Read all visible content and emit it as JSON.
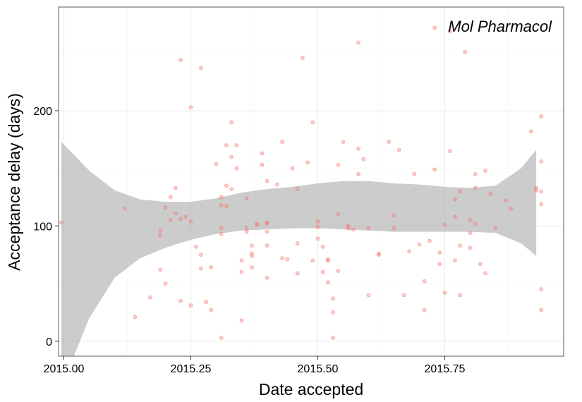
{
  "chart_data": {
    "type": "scatter",
    "xlabel": "Date accepted",
    "ylabel": "Acceptance delay (days)",
    "annotation": "Mol Pharmacol",
    "xlim": [
      1.9896,
      2.9841
    ],
    "ylim": [
      -13,
      290
    ],
    "x_ticks": [
      {
        "value": 2015.0,
        "label": "2015.00"
      },
      {
        "value": 2015.25,
        "label": "2015.25"
      },
      {
        "value": 2015.5,
        "label": "2015.50"
      },
      {
        "value": 2015.75,
        "label": "2015.75"
      }
    ],
    "y_ticks": [
      {
        "value": 0,
        "label": "0"
      },
      {
        "value": 100,
        "label": "100"
      },
      {
        "value": 200,
        "label": "200"
      }
    ],
    "grid": true,
    "smooth_band": {
      "color": "#999999",
      "x": [
        2014.995,
        2015.05,
        2015.1,
        2015.15,
        2015.2,
        2015.25,
        2015.3,
        2015.35,
        2015.4,
        2015.45,
        2015.5,
        2015.55,
        2015.6,
        2015.65,
        2015.7,
        2015.75,
        2015.8,
        2015.85,
        2015.9,
        2015.93
      ],
      "upper": [
        173,
        148,
        131,
        123,
        121,
        121,
        124,
        129,
        132,
        134,
        137,
        139,
        139,
        137,
        136,
        134,
        133,
        135,
        150,
        166
      ],
      "lower": [
        -40,
        20,
        55,
        72,
        81,
        88,
        93,
        96,
        97,
        98,
        98,
        97,
        96,
        95,
        95,
        95,
        95,
        94,
        85,
        74
      ]
    },
    "series": [
      {
        "color": "#f8766d",
        "points": [
          [
            2014.995,
            103
          ],
          [
            2015.12,
            115
          ],
          [
            2015.14,
            21
          ],
          [
            2015.17,
            38
          ],
          [
            2015.19,
            62
          ],
          [
            2015.19,
            96
          ],
          [
            2015.19,
            92
          ],
          [
            2015.2,
            50
          ],
          [
            2015.2,
            116
          ],
          [
            2015.21,
            125
          ],
          [
            2015.21,
            105
          ],
          [
            2015.22,
            111
          ],
          [
            2015.23,
            106
          ],
          [
            2015.22,
            133
          ],
          [
            2015.23,
            35
          ],
          [
            2015.23,
            244
          ],
          [
            2015.24,
            108
          ],
          [
            2015.25,
            104
          ],
          [
            2015.25,
            31
          ],
          [
            2015.25,
            203
          ],
          [
            2015.26,
            82
          ],
          [
            2015.27,
            63
          ],
          [
            2015.27,
            75
          ],
          [
            2015.27,
            237
          ],
          [
            2015.28,
            34
          ],
          [
            2015.29,
            27
          ],
          [
            2015.29,
            64
          ],
          [
            2015.3,
            154
          ],
          [
            2015.31,
            125
          ],
          [
            2015.31,
            118
          ],
          [
            2015.31,
            98
          ],
          [
            2015.31,
            93
          ],
          [
            2015.31,
            3
          ],
          [
            2015.32,
            135
          ],
          [
            2015.32,
            117
          ],
          [
            2015.32,
            170
          ],
          [
            2015.33,
            160
          ],
          [
            2015.33,
            190
          ],
          [
            2015.33,
            132
          ],
          [
            2015.34,
            150
          ],
          [
            2015.34,
            170
          ],
          [
            2015.35,
            18
          ],
          [
            2015.35,
            60
          ],
          [
            2015.35,
            70
          ],
          [
            2015.36,
            95
          ],
          [
            2015.36,
            98
          ],
          [
            2015.36,
            124
          ],
          [
            2015.37,
            64
          ],
          [
            2015.37,
            74
          ],
          [
            2015.37,
            76
          ],
          [
            2015.37,
            83
          ],
          [
            2015.38,
            102
          ],
          [
            2015.38,
            101
          ],
          [
            2015.39,
            163
          ],
          [
            2015.39,
            153
          ],
          [
            2015.4,
            139
          ],
          [
            2015.4,
            103
          ],
          [
            2015.4,
            95
          ],
          [
            2015.4,
            102
          ],
          [
            2015.4,
            83
          ],
          [
            2015.4,
            55
          ],
          [
            2015.42,
            136
          ],
          [
            2015.43,
            173
          ],
          [
            2015.43,
            72
          ],
          [
            2015.44,
            71
          ],
          [
            2015.45,
            150
          ],
          [
            2015.46,
            132
          ],
          [
            2015.46,
            85
          ],
          [
            2015.46,
            59
          ],
          [
            2015.47,
            246
          ],
          [
            2015.48,
            155
          ],
          [
            2015.49,
            190
          ],
          [
            2015.49,
            70
          ],
          [
            2015.5,
            104
          ],
          [
            2015.5,
            89
          ],
          [
            2015.5,
            99
          ],
          [
            2015.51,
            60
          ],
          [
            2015.51,
            82
          ],
          [
            2015.52,
            70
          ],
          [
            2015.52,
            71
          ],
          [
            2015.52,
            51
          ],
          [
            2015.53,
            37
          ],
          [
            2015.53,
            25
          ],
          [
            2015.53,
            3
          ],
          [
            2015.54,
            110
          ],
          [
            2015.54,
            61
          ],
          [
            2015.54,
            153
          ],
          [
            2015.55,
            173
          ],
          [
            2015.56,
            100
          ],
          [
            2015.56,
            98
          ],
          [
            2015.57,
            97
          ],
          [
            2015.58,
            145
          ],
          [
            2015.58,
            259
          ],
          [
            2015.58,
            167
          ],
          [
            2015.59,
            158
          ],
          [
            2015.6,
            40
          ],
          [
            2015.6,
            98
          ],
          [
            2015.62,
            76
          ],
          [
            2015.62,
            75
          ],
          [
            2015.64,
            173
          ],
          [
            2015.65,
            98
          ],
          [
            2015.65,
            109
          ],
          [
            2015.66,
            166
          ],
          [
            2015.67,
            40
          ],
          [
            2015.68,
            78
          ],
          [
            2015.69,
            145
          ],
          [
            2015.7,
            84
          ],
          [
            2015.71,
            27
          ],
          [
            2015.71,
            52
          ],
          [
            2015.72,
            87
          ],
          [
            2015.73,
            149
          ],
          [
            2015.73,
            272
          ],
          [
            2015.74,
            67
          ],
          [
            2015.74,
            77
          ],
          [
            2015.75,
            42
          ],
          [
            2015.75,
            101
          ],
          [
            2015.76,
            269
          ],
          [
            2015.76,
            165
          ],
          [
            2015.77,
            70
          ],
          [
            2015.77,
            108
          ],
          [
            2015.77,
            123
          ],
          [
            2015.78,
            130
          ],
          [
            2015.78,
            40
          ],
          [
            2015.78,
            83
          ],
          [
            2015.79,
            251
          ],
          [
            2015.8,
            81
          ],
          [
            2015.8,
            105
          ],
          [
            2015.8,
            94
          ],
          [
            2015.81,
            133
          ],
          [
            2015.81,
            102
          ],
          [
            2015.81,
            145
          ],
          [
            2015.82,
            67
          ],
          [
            2015.83,
            148
          ],
          [
            2015.83,
            59
          ],
          [
            2015.84,
            128
          ],
          [
            2015.85,
            98
          ],
          [
            2015.87,
            122
          ],
          [
            2015.88,
            115
          ],
          [
            2015.92,
            182
          ],
          [
            2015.93,
            131
          ],
          [
            2015.93,
            133
          ],
          [
            2015.94,
            130
          ],
          [
            2015.94,
            195
          ],
          [
            2015.94,
            156
          ],
          [
            2015.94,
            119
          ],
          [
            2015.94,
            45
          ],
          [
            2015.94,
            27
          ]
        ]
      }
    ]
  }
}
